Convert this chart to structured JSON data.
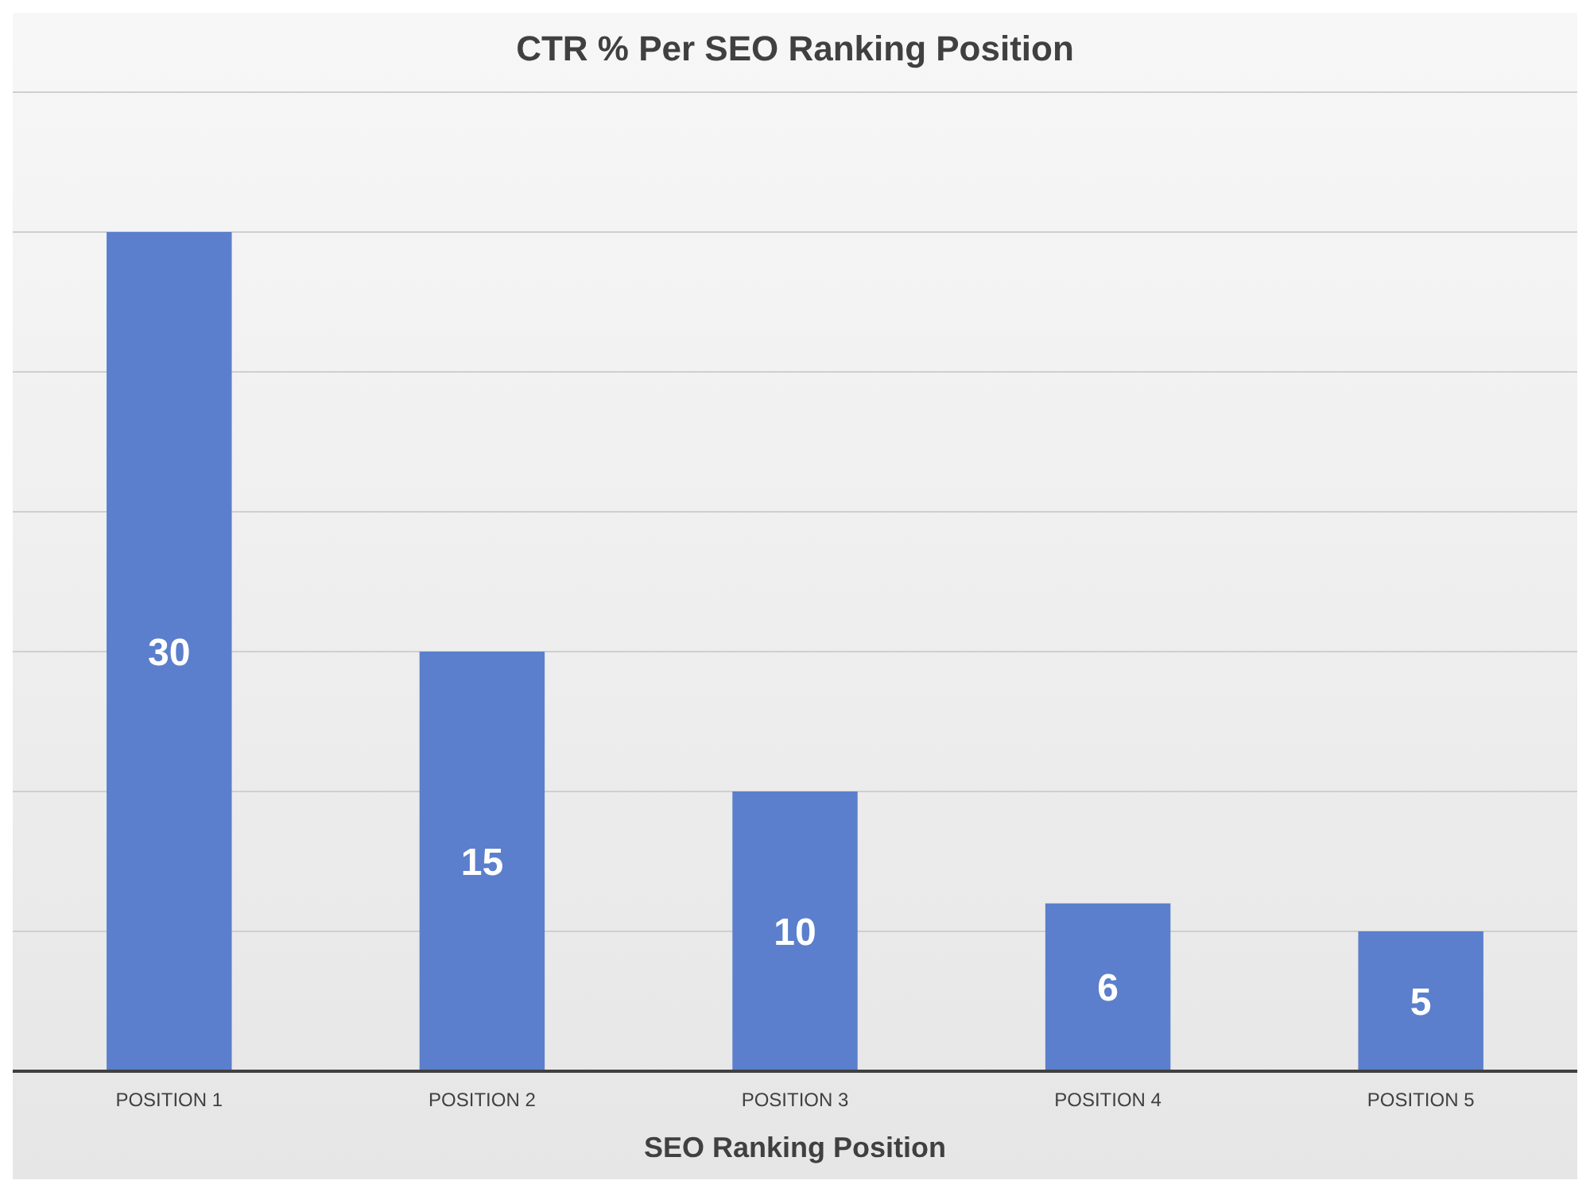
{
  "chart_data": {
    "type": "bar",
    "title": "CTR % Per SEO Ranking Position",
    "xlabel": "SEO Ranking Position",
    "categories": [
      "POSITION 1",
      "POSITION 2",
      "POSITION 3",
      "POSITION 4",
      "POSITION 5"
    ],
    "values": [
      30,
      15,
      10,
      6,
      5
    ],
    "color": "#5b7fcc",
    "data_labels": true,
    "ylim": [
      0,
      35
    ],
    "yticks": [
      {
        "value": 0,
        "label": null
      },
      {
        "value": 5,
        "label": null
      },
      {
        "value": 10,
        "label": null
      },
      {
        "value": 15,
        "label": null
      },
      {
        "value": 20,
        "label": null
      },
      {
        "value": 25,
        "label": null
      },
      {
        "value": 30,
        "label": null
      },
      {
        "value": 35,
        "label": null
      }
    ],
    "grid": "y",
    "tick_labels": "x"
  }
}
